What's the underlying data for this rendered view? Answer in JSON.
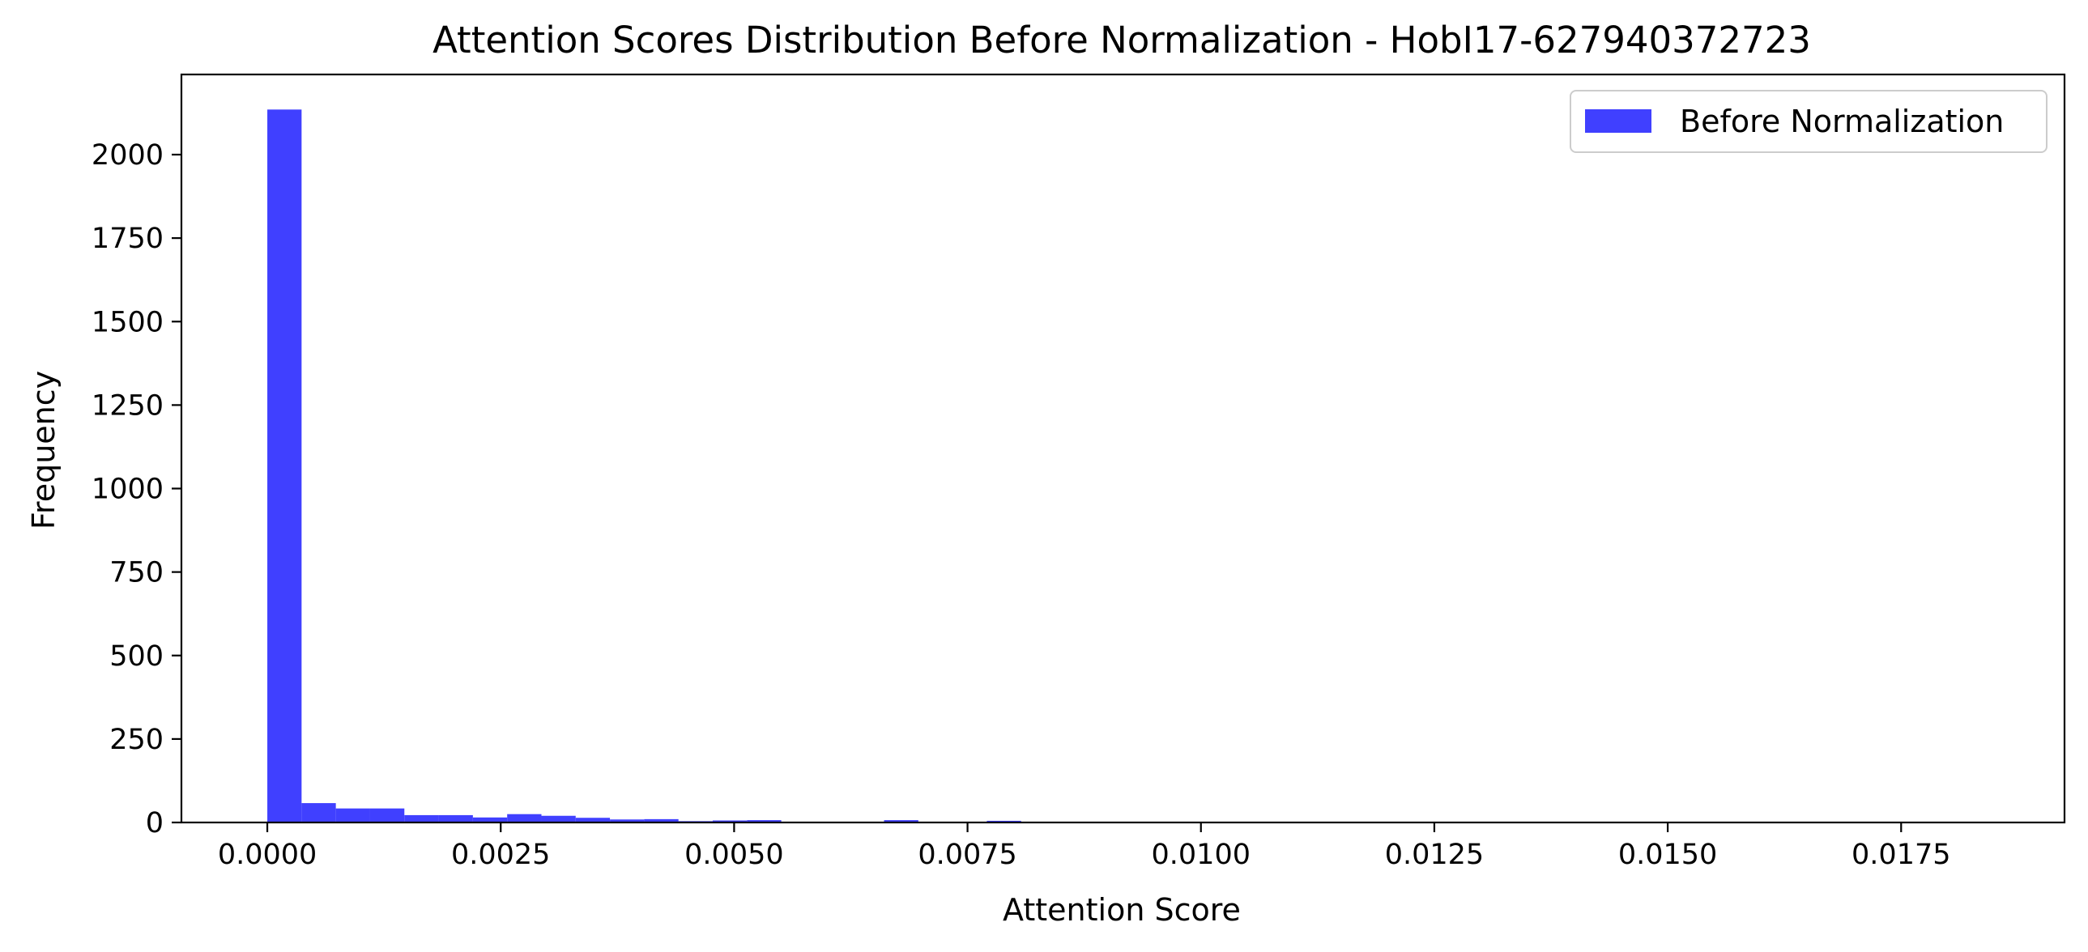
{
  "chart_data": {
    "type": "bar",
    "title": "Attention Scores Distribution Before Normalization - HobI17-627940372723",
    "xlabel": "Attention Score",
    "ylabel": "Frequency",
    "xlim": [
      -0.00092,
      0.01925
    ],
    "ylim": [
      0,
      2240
    ],
    "grid": false,
    "legend": {
      "placement": "top-right",
      "entries": [
        {
          "label": "Before Normalization",
          "color": "#4040ff"
        }
      ]
    },
    "bar_color": "#4040ff",
    "x_ticks": [
      0.0,
      0.0025,
      0.005,
      0.0075,
      0.01,
      0.0125,
      0.015,
      0.0175
    ],
    "x_tick_labels": [
      "0.0000",
      "0.0025",
      "0.0050",
      "0.0075",
      "0.0100",
      "0.0125",
      "0.0150",
      "0.0175"
    ],
    "y_ticks": [
      0,
      250,
      500,
      750,
      1000,
      1250,
      1500,
      1750,
      2000
    ],
    "y_tick_labels": [
      "0",
      "250",
      "500",
      "750",
      "1000",
      "1250",
      "1500",
      "1750",
      "2000"
    ],
    "bin_start": 0.0,
    "bin_width": 0.000367,
    "counts": [
      2135,
      58,
      42,
      42,
      22,
      22,
      15,
      25,
      20,
      14,
      9,
      10,
      4,
      6,
      7,
      2,
      2,
      2,
      7,
      2,
      2,
      5,
      2,
      1,
      1,
      1,
      1,
      1,
      1,
      1,
      1,
      1,
      1,
      1,
      1,
      1,
      1,
      1,
      1,
      1,
      1,
      1,
      1,
      1,
      1,
      1,
      1,
      1,
      1,
      1
    ]
  }
}
